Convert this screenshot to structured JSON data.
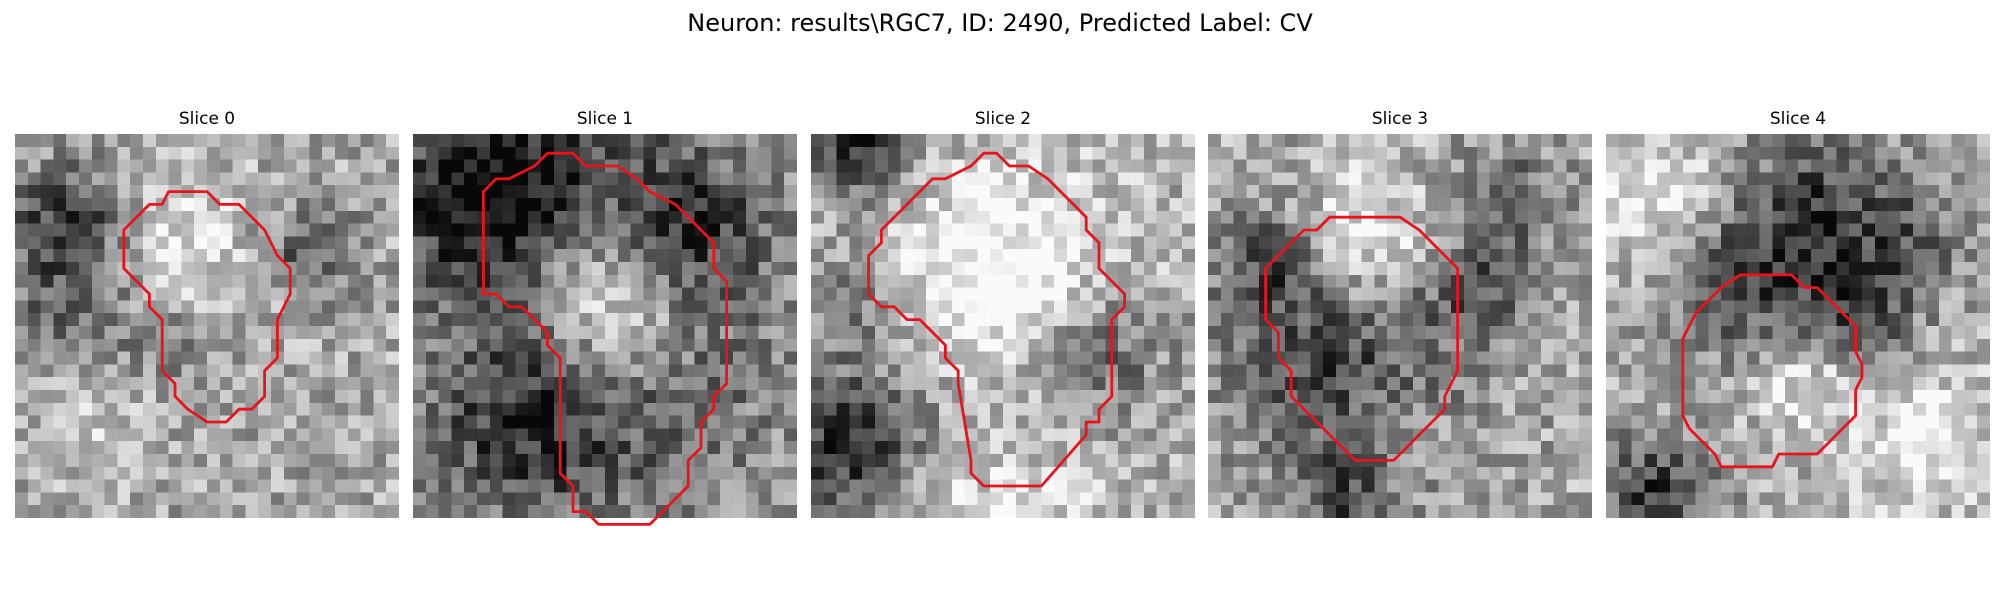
{
  "figure": {
    "title": "Neuron: results\\RGC7, ID: 2490, Predicted Label: CV",
    "contour_color": "#e8141c"
  },
  "slices": [
    {
      "title": "Slice 0",
      "seed": 11,
      "dark": [
        [
          4.5,
          7.5,
          3.5,
          0.55
        ],
        [
          10.5,
          16,
          4.5,
          0.45
        ],
        [
          4,
          15,
          3,
          0.25
        ],
        [
          23,
          9,
          2.5,
          0.35
        ]
      ],
      "bright": [
        [
          11,
          11,
          5,
          0.4
        ],
        [
          8,
          20,
          4,
          0.25
        ]
      ],
      "contour": [
        [
          12,
          4.5
        ],
        [
          15,
          4.5
        ],
        [
          16,
          5.5
        ],
        [
          17.5,
          5.5
        ],
        [
          19.5,
          7.5
        ],
        [
          20.5,
          9.5
        ],
        [
          21.5,
          10.5
        ],
        [
          21.5,
          12.5
        ],
        [
          20.5,
          14.5
        ],
        [
          20.5,
          17.5
        ],
        [
          19.5,
          18.5
        ],
        [
          19.5,
          20.5
        ],
        [
          18.5,
          21.5
        ],
        [
          17.5,
          21.5
        ],
        [
          16.5,
          22.5
        ],
        [
          15,
          22.5
        ],
        [
          13.5,
          21.5
        ],
        [
          12.5,
          20.5
        ],
        [
          12.5,
          19.5
        ],
        [
          11.5,
          18.5
        ],
        [
          11.5,
          14.5
        ],
        [
          10.5,
          13.5
        ],
        [
          10.5,
          12.5
        ],
        [
          8.5,
          10.5
        ],
        [
          8.5,
          7.5
        ],
        [
          10.5,
          5.5
        ],
        [
          11.5,
          5.5
        ]
      ]
    },
    {
      "title": "Slice 1",
      "seed": 23,
      "dark": [
        [
          5,
          5,
          5,
          0.55
        ],
        [
          16,
          18,
          9,
          0.35
        ],
        [
          13,
          4,
          6,
          0.35
        ],
        [
          22,
          7,
          4,
          0.35
        ],
        [
          8,
          23,
          5,
          0.3
        ]
      ],
      "bright": [
        [
          14,
          10,
          5,
          0.4
        ],
        [
          16,
          15,
          4,
          0.3
        ]
      ],
      "contour": [
        [
          8.5,
          3
        ],
        [
          9.5,
          2.5
        ],
        [
          10.5,
          1.5
        ],
        [
          12.5,
          1.5
        ],
        [
          13.5,
          2.5
        ],
        [
          16,
          2.5
        ],
        [
          17.5,
          3.5
        ],
        [
          18.5,
          4.5
        ],
        [
          20.5,
          5.5
        ],
        [
          22.5,
          7.5
        ],
        [
          23.5,
          8.5
        ],
        [
          23.5,
          10.5
        ],
        [
          24.5,
          11.5
        ],
        [
          24.5,
          19.5
        ],
        [
          23.5,
          20.5
        ],
        [
          23.5,
          21.5
        ],
        [
          22.5,
          22.5
        ],
        [
          22.5,
          24.5
        ],
        [
          21.5,
          25.5
        ],
        [
          21.5,
          27.5
        ],
        [
          20.5,
          28.5
        ],
        [
          19.5,
          29.5
        ],
        [
          18.5,
          30.5
        ],
        [
          14.5,
          30.5
        ],
        [
          13.5,
          29.5
        ],
        [
          12.5,
          29.5
        ],
        [
          12.5,
          27.5
        ],
        [
          11.5,
          26.5
        ],
        [
          11.5,
          17.5
        ],
        [
          10.5,
          16.5
        ],
        [
          10.5,
          15.5
        ],
        [
          9.5,
          14.5
        ],
        [
          8.5,
          13.5
        ],
        [
          7.5,
          13.5
        ],
        [
          6.5,
          12.5
        ],
        [
          5.5,
          12.5
        ],
        [
          5.5,
          4.5
        ],
        [
          6.5,
          3.5
        ],
        [
          7.5,
          3.5
        ]
      ]
    },
    {
      "title": "Slice 2",
      "seed": 37,
      "dark": [
        [
          3,
          24,
          4,
          0.55
        ],
        [
          22,
          17,
          4,
          0.4
        ],
        [
          4,
          13,
          3,
          0.3
        ],
        [
          13,
          22,
          5,
          0.3
        ],
        [
          4,
          0.5,
          3,
          0.5
        ]
      ],
      "bright": [
        [
          15,
          13,
          7,
          0.45
        ],
        [
          13,
          28,
          6,
          0.3
        ]
      ],
      "contour": [
        [
          11.5,
          3
        ],
        [
          12.5,
          2.5
        ],
        [
          13.5,
          1.5
        ],
        [
          14.5,
          1.5
        ],
        [
          15.5,
          2.5
        ],
        [
          17,
          2.5
        ],
        [
          18.5,
          3.5
        ],
        [
          20.5,
          5.5
        ],
        [
          21.5,
          6.5
        ],
        [
          21.5,
          7.5
        ],
        [
          22.5,
          8.5
        ],
        [
          22.5,
          10.5
        ],
        [
          23.5,
          11.5
        ],
        [
          24.5,
          12.5
        ],
        [
          24.5,
          13.5
        ],
        [
          23.5,
          14.5
        ],
        [
          23.5,
          20.5
        ],
        [
          22.5,
          21.5
        ],
        [
          22.5,
          22.5
        ],
        [
          21.5,
          22.5
        ],
        [
          21.5,
          23.5
        ],
        [
          18,
          27.5
        ],
        [
          13.5,
          27.5
        ],
        [
          12.5,
          26.5
        ],
        [
          12.5,
          25.5
        ],
        [
          12,
          22.5
        ],
        [
          11.5,
          19.5
        ],
        [
          11.5,
          18.5
        ],
        [
          10.5,
          17.5
        ],
        [
          10.5,
          16.5
        ],
        [
          9.5,
          15.5
        ],
        [
          8.5,
          14.5
        ],
        [
          7.5,
          14.5
        ],
        [
          6.5,
          13.5
        ],
        [
          5.5,
          13.5
        ],
        [
          4.5,
          12.5
        ],
        [
          4.5,
          9.5
        ],
        [
          5.5,
          8.5
        ],
        [
          5.5,
          7.5
        ],
        [
          6.5,
          6.5
        ],
        [
          7.5,
          5.5
        ],
        [
          9.5,
          3.5
        ],
        [
          10.5,
          3.5
        ]
      ]
    },
    {
      "title": "Slice 3",
      "seed": 41,
      "dark": [
        [
          11,
          18.5,
          6,
          0.5
        ],
        [
          5,
          10,
          3,
          0.35
        ],
        [
          21,
          12,
          3,
          0.3
        ],
        [
          11,
          29,
          3,
          0.3
        ],
        [
          24,
          5,
          3,
          0.25
        ]
      ],
      "bright": [
        [
          12,
          9,
          4,
          0.35
        ],
        [
          14,
          22,
          4,
          0.2
        ]
      ],
      "contour": [
        [
          10,
          6.5
        ],
        [
          15,
          6.5
        ],
        [
          16.5,
          7.5
        ],
        [
          17.5,
          8.5
        ],
        [
          18.5,
          9.5
        ],
        [
          19.5,
          10.5
        ],
        [
          19.5,
          18.5
        ],
        [
          18.5,
          20.5
        ],
        [
          18.5,
          21.5
        ],
        [
          17.5,
          22.5
        ],
        [
          16.5,
          23.5
        ],
        [
          15.5,
          24.5
        ],
        [
          14.5,
          25.5
        ],
        [
          11.5,
          25.5
        ],
        [
          10.5,
          24.5
        ],
        [
          9.5,
          23.5
        ],
        [
          8.5,
          22.5
        ],
        [
          7.5,
          21.5
        ],
        [
          6.5,
          20.5
        ],
        [
          6.5,
          18.5
        ],
        [
          5.5,
          17.5
        ],
        [
          5.5,
          15.5
        ],
        [
          4.5,
          14.5
        ],
        [
          4.5,
          10.5
        ],
        [
          5.5,
          9.5
        ],
        [
          6.5,
          8.5
        ],
        [
          7.5,
          7.5
        ],
        [
          8.5,
          7.5
        ],
        [
          9.5,
          6.5
        ]
      ]
    },
    {
      "title": "Slice 4",
      "seed": 53,
      "dark": [
        [
          12,
          11,
          5,
          0.4
        ],
        [
          20,
          14,
          3,
          0.35
        ],
        [
          4,
          28,
          3,
          0.45
        ],
        [
          17,
          5,
          4,
          0.3
        ],
        [
          24,
          8,
          3,
          0.25
        ]
      ],
      "bright": [
        [
          4,
          5,
          4,
          0.3
        ],
        [
          15,
          19,
          3,
          0.3
        ],
        [
          25,
          24,
          4,
          0.3
        ]
      ],
      "contour": [
        [
          11.5,
          11
        ],
        [
          14.5,
          11
        ],
        [
          15.5,
          12
        ],
        [
          16.5,
          12
        ],
        [
          17.5,
          13
        ],
        [
          18.5,
          14
        ],
        [
          19.5,
          15
        ],
        [
          19.5,
          17
        ],
        [
          20,
          18
        ],
        [
          20,
          19
        ],
        [
          19.5,
          20
        ],
        [
          19.5,
          22
        ],
        [
          18.5,
          23
        ],
        [
          17.5,
          24
        ],
        [
          16.5,
          25
        ],
        [
          13.5,
          25
        ],
        [
          13,
          26
        ],
        [
          9,
          26
        ],
        [
          8.5,
          25
        ],
        [
          7.5,
          24
        ],
        [
          6.5,
          23
        ],
        [
          6,
          22
        ],
        [
          6,
          16
        ],
        [
          6.5,
          15
        ],
        [
          7,
          14
        ],
        [
          8,
          13
        ],
        [
          9,
          12
        ],
        [
          10.5,
          11
        ]
      ]
    }
  ]
}
